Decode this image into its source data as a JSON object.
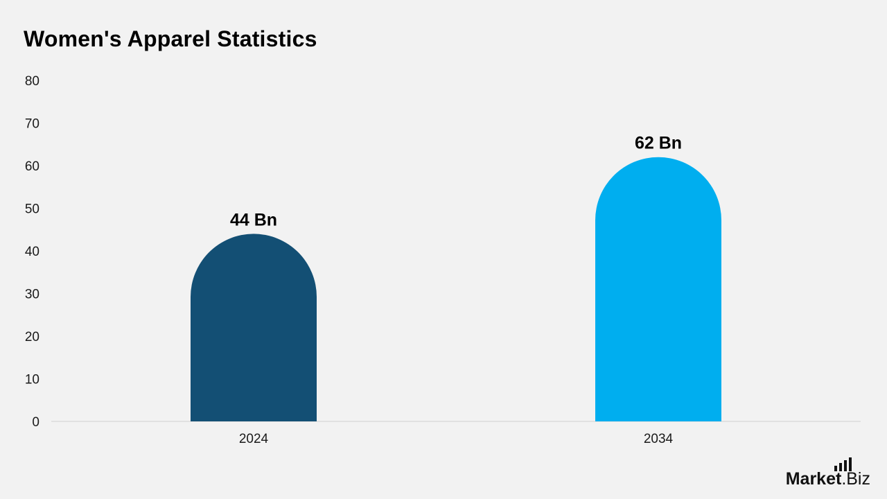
{
  "title": "Women's Apparel Statistics",
  "brand": {
    "name_main": "Market",
    "name_tld": ".Biz"
  },
  "chart_data": {
    "type": "bar",
    "title": "Women's Apparel Statistics",
    "xlabel": "",
    "ylabel": "",
    "categories": [
      "2024",
      "2034"
    ],
    "values": [
      44,
      62
    ],
    "data_labels": [
      "44 Bn",
      "62 Bn"
    ],
    "colors": [
      "#134f74",
      "#00aeef"
    ],
    "ylim": [
      0,
      80
    ],
    "yticks": [
      0,
      10,
      20,
      30,
      40,
      50,
      60,
      70,
      80
    ],
    "grid": false,
    "legend": "none"
  }
}
